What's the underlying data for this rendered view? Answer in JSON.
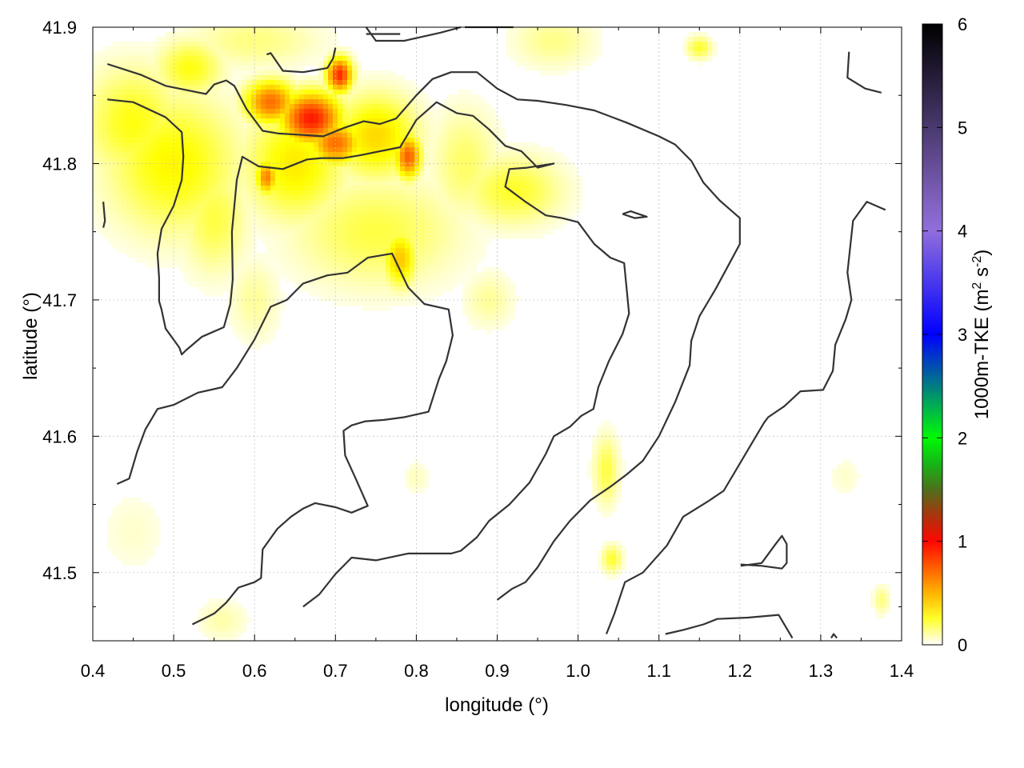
{
  "chart_data": {
    "type": "heatmap",
    "title": "",
    "xlabel": "longitude (°)",
    "ylabel": "latitude (°)",
    "colorbar_label": "1000m-TKE (m",
    "colorbar_label_sup1": "2",
    "colorbar_label_mid": " s",
    "colorbar_label_sup2": "-2",
    "colorbar_label_end": ")",
    "xlim": [
      0.4,
      1.4
    ],
    "ylim": [
      41.45,
      41.9
    ],
    "clim": [
      0,
      6
    ],
    "x_ticks": [
      "0.4",
      "0.5",
      "0.6",
      "0.7",
      "0.8",
      "0.9",
      "1.0",
      "1.1",
      "1.2",
      "1.3",
      "1.4"
    ],
    "y_ticks": [
      "41.5",
      "41.6",
      "41.7",
      "41.8",
      "41.9"
    ],
    "colorbar_ticks": [
      "0",
      "1",
      "2",
      "3",
      "4",
      "5",
      "6"
    ],
    "grid": true,
    "colormap": [
      "#ffffff",
      "#ffff00",
      "#ffa500",
      "#ff0000",
      "#228b22",
      "#00ff00",
      "#0000ff",
      "#9370db",
      "#000000"
    ],
    "contour_color": "#333333",
    "heat_blobs": [
      {
        "lon": 0.5,
        "lat": 41.8,
        "rx": 0.08,
        "ry": 0.05,
        "v": 0.32
      },
      {
        "lon": 0.45,
        "lat": 41.83,
        "rx": 0.06,
        "ry": 0.04,
        "v": 0.28
      },
      {
        "lon": 0.52,
        "lat": 41.87,
        "rx": 0.04,
        "ry": 0.02,
        "v": 0.28
      },
      {
        "lon": 0.55,
        "lat": 41.76,
        "rx": 0.04,
        "ry": 0.04,
        "v": 0.22
      },
      {
        "lon": 0.67,
        "lat": 41.833,
        "rx": 0.035,
        "ry": 0.018,
        "v": 0.95
      },
      {
        "lon": 0.62,
        "lat": 41.845,
        "rx": 0.03,
        "ry": 0.015,
        "v": 0.7
      },
      {
        "lon": 0.705,
        "lat": 41.865,
        "rx": 0.015,
        "ry": 0.012,
        "v": 0.9
      },
      {
        "lon": 0.7,
        "lat": 41.815,
        "rx": 0.03,
        "ry": 0.015,
        "v": 0.7
      },
      {
        "lon": 0.79,
        "lat": 41.805,
        "rx": 0.015,
        "ry": 0.015,
        "v": 0.75
      },
      {
        "lon": 0.615,
        "lat": 41.79,
        "rx": 0.012,
        "ry": 0.012,
        "v": 0.65
      },
      {
        "lon": 0.65,
        "lat": 41.8,
        "rx": 0.06,
        "ry": 0.04,
        "v": 0.35
      },
      {
        "lon": 0.75,
        "lat": 41.82,
        "rx": 0.05,
        "ry": 0.03,
        "v": 0.4
      },
      {
        "lon": 0.75,
        "lat": 41.75,
        "rx": 0.1,
        "ry": 0.04,
        "v": 0.22
      },
      {
        "lon": 0.78,
        "lat": 41.73,
        "rx": 0.02,
        "ry": 0.02,
        "v": 0.45
      },
      {
        "lon": 0.92,
        "lat": 41.78,
        "rx": 0.06,
        "ry": 0.025,
        "v": 0.25
      },
      {
        "lon": 0.86,
        "lat": 41.8,
        "rx": 0.04,
        "ry": 0.04,
        "v": 0.18
      },
      {
        "lon": 0.6,
        "lat": 41.89,
        "rx": 0.08,
        "ry": 0.02,
        "v": 0.15
      },
      {
        "lon": 0.97,
        "lat": 41.89,
        "rx": 0.05,
        "ry": 0.02,
        "v": 0.14
      },
      {
        "lon": 1.15,
        "lat": 41.885,
        "rx": 0.015,
        "ry": 0.008,
        "v": 0.25
      },
      {
        "lon": 1.035,
        "lat": 41.575,
        "rx": 0.015,
        "ry": 0.025,
        "v": 0.22
      },
      {
        "lon": 1.042,
        "lat": 41.51,
        "rx": 0.012,
        "ry": 0.01,
        "v": 0.25
      },
      {
        "lon": 1.375,
        "lat": 41.48,
        "rx": 0.01,
        "ry": 0.01,
        "v": 0.15
      },
      {
        "lon": 0.56,
        "lat": 41.465,
        "rx": 0.03,
        "ry": 0.015,
        "v": 0.1
      },
      {
        "lon": 0.45,
        "lat": 41.53,
        "rx": 0.04,
        "ry": 0.03,
        "v": 0.06
      },
      {
        "lon": 0.6,
        "lat": 41.7,
        "rx": 0.03,
        "ry": 0.03,
        "v": 0.12
      },
      {
        "lon": 0.89,
        "lat": 41.7,
        "rx": 0.03,
        "ry": 0.02,
        "v": 0.12
      },
      {
        "lon": 0.8,
        "lat": 41.57,
        "rx": 0.015,
        "ry": 0.012,
        "v": 0.08
      },
      {
        "lon": 1.33,
        "lat": 41.57,
        "rx": 0.02,
        "ry": 0.015,
        "v": 0.06
      }
    ],
    "contours": [
      [
        [
          0.418,
          41.873
        ],
        [
          0.46,
          41.865
        ],
        [
          0.49,
          41.857
        ],
        [
          0.54,
          41.851
        ],
        [
          0.55,
          41.858
        ],
        [
          0.565,
          41.861
        ],
        [
          0.575,
          41.857
        ],
        [
          0.59,
          41.84
        ],
        [
          0.61,
          41.824
        ],
        [
          0.63,
          41.822
        ],
        [
          0.66,
          41.821
        ],
        [
          0.685,
          41.82
        ],
        [
          0.71,
          41.826
        ],
        [
          0.735,
          41.831
        ],
        [
          0.755,
          41.829
        ],
        [
          0.775,
          41.833
        ],
        [
          0.8,
          41.85
        ],
        [
          0.82,
          41.862
        ],
        [
          0.843,
          41.867
        ],
        [
          0.875,
          41.867
        ],
        [
          0.9,
          41.855
        ],
        [
          0.925,
          41.847
        ],
        [
          0.95,
          41.846
        ],
        [
          0.985,
          41.843
        ],
        [
          1.02,
          41.839
        ],
        [
          1.06,
          41.83
        ],
        [
          1.1,
          41.82
        ],
        [
          1.12,
          41.814
        ],
        [
          1.14,
          41.802
        ],
        [
          1.155,
          41.786
        ],
        [
          1.175,
          41.773
        ],
        [
          1.2,
          41.76
        ],
        [
          1.2,
          41.741
        ],
        [
          1.19,
          41.73
        ],
        [
          1.17,
          41.708
        ],
        [
          1.15,
          41.688
        ],
        [
          1.14,
          41.67
        ],
        [
          1.138,
          41.652
        ],
        [
          1.12,
          41.625
        ],
        [
          1.1,
          41.6
        ],
        [
          1.08,
          41.582
        ],
        [
          1.06,
          41.572
        ],
        [
          1.04,
          41.563
        ],
        [
          1.015,
          41.553
        ],
        [
          0.99,
          41.538
        ],
        [
          0.97,
          41.523
        ],
        [
          0.95,
          41.504
        ],
        [
          0.935,
          41.493
        ],
        [
          0.918,
          41.488
        ],
        [
          0.9,
          41.48
        ]
      ],
      [
        [
          0.418,
          41.847
        ],
        [
          0.45,
          41.845
        ],
        [
          0.49,
          41.834
        ],
        [
          0.51,
          41.823
        ],
        [
          0.512,
          41.805
        ],
        [
          0.51,
          41.788
        ],
        [
          0.5,
          41.769
        ],
        [
          0.485,
          41.752
        ],
        [
          0.48,
          41.734
        ],
        [
          0.482,
          41.716
        ],
        [
          0.482,
          41.699
        ],
        [
          0.485,
          41.693
        ],
        [
          0.49,
          41.679
        ],
        [
          0.507,
          41.665
        ],
        [
          0.51,
          41.66
        ],
        [
          0.515,
          41.663
        ],
        [
          0.535,
          41.673
        ],
        [
          0.562,
          41.68
        ],
        [
          0.57,
          41.697
        ],
        [
          0.573,
          41.715
        ],
        [
          0.572,
          41.75
        ],
        [
          0.578,
          41.788
        ],
        [
          0.585,
          41.805
        ],
        [
          0.605,
          41.798
        ],
        [
          0.635,
          41.796
        ],
        [
          0.665,
          41.803
        ],
        [
          0.683,
          41.804
        ],
        [
          0.71,
          41.804
        ],
        [
          0.73,
          41.806
        ],
        [
          0.755,
          41.809
        ],
        [
          0.78,
          41.812
        ],
        [
          0.8,
          41.832
        ],
        [
          0.825,
          41.845
        ],
        [
          0.85,
          41.837
        ],
        [
          0.87,
          41.835
        ],
        [
          0.89,
          41.825
        ],
        [
          0.91,
          41.813
        ],
        [
          0.93,
          41.809
        ],
        [
          0.95,
          41.797
        ],
        [
          0.97,
          41.8
        ],
        [
          0.937,
          41.797
        ],
        [
          0.915,
          41.796
        ],
        [
          0.91,
          41.783
        ],
        [
          0.935,
          41.772
        ],
        [
          0.96,
          41.762
        ],
        [
          0.98,
          41.76
        ],
        [
          1.0,
          41.757
        ],
        [
          1.02,
          41.741
        ],
        [
          1.04,
          41.731
        ],
        [
          1.057,
          41.727
        ],
        [
          1.063,
          41.69
        ],
        [
          1.055,
          41.675
        ],
        [
          1.038,
          41.655
        ],
        [
          1.025,
          41.636
        ],
        [
          1.019,
          41.62
        ],
        [
          1.004,
          41.615
        ],
        [
          0.99,
          41.607
        ],
        [
          0.97,
          41.6
        ],
        [
          0.96,
          41.587
        ],
        [
          0.94,
          41.566
        ],
        [
          0.915,
          41.55
        ],
        [
          0.89,
          41.538
        ],
        [
          0.875,
          41.526
        ],
        [
          0.855,
          41.516
        ],
        [
          0.843,
          41.514
        ],
        [
          0.79,
          41.514
        ],
        [
          0.75,
          41.509
        ],
        [
          0.72,
          41.511
        ],
        [
          0.7,
          41.499
        ],
        [
          0.68,
          41.484
        ],
        [
          0.66,
          41.475
        ]
      ],
      [
        [
          0.738,
          41.9
        ],
        [
          0.75,
          41.89
        ],
        [
          0.785,
          41.89
        ],
        [
          0.83,
          41.896
        ],
        [
          0.855,
          41.9
        ]
      ],
      [
        [
          0.86,
          41.9
        ],
        [
          0.92,
          41.9
        ]
      ],
      [
        [
          0.413,
          41.772
        ],
        [
          0.415,
          41.758
        ],
        [
          0.413,
          41.753
        ]
      ],
      [
        [
          0.738,
          41.895
        ],
        [
          0.78,
          41.895
        ]
      ],
      [
        [
          1.335,
          41.882
        ],
        [
          1.333,
          41.863
        ],
        [
          1.355,
          41.855
        ],
        [
          1.375,
          41.852
        ]
      ],
      [
        [
          1.38,
          41.766
        ],
        [
          1.357,
          41.772
        ],
        [
          1.34,
          41.758
        ],
        [
          1.333,
          41.72
        ],
        [
          1.338,
          41.7
        ],
        [
          1.331,
          41.686
        ],
        [
          1.318,
          41.667
        ],
        [
          1.315,
          41.648
        ],
        [
          1.303,
          41.634
        ],
        [
          1.275,
          41.633
        ],
        [
          1.255,
          41.622
        ],
        [
          1.235,
          41.614
        ],
        [
          1.23,
          41.61
        ],
        [
          1.22,
          41.6
        ],
        [
          1.2,
          41.58
        ],
        [
          1.18,
          41.56
        ],
        [
          1.16,
          41.552
        ],
        [
          1.13,
          41.541
        ],
        [
          1.11,
          41.52
        ],
        [
          1.08,
          41.5
        ],
        [
          1.058,
          41.493
        ],
        [
          1.045,
          41.47
        ],
        [
          1.035,
          41.455
        ]
      ],
      [
        [
          0.43,
          41.565
        ],
        [
          0.445,
          41.569
        ],
        [
          0.455,
          41.589
        ],
        [
          0.465,
          41.605
        ],
        [
          0.48,
          41.62
        ],
        [
          0.5,
          41.623
        ],
        [
          0.53,
          41.632
        ],
        [
          0.56,
          41.636
        ],
        [
          0.578,
          41.65
        ],
        [
          0.6,
          41.671
        ],
        [
          0.62,
          41.695
        ],
        [
          0.64,
          41.7
        ],
        [
          0.66,
          41.712
        ],
        [
          0.69,
          41.718
        ],
        [
          0.715,
          41.72
        ],
        [
          0.74,
          41.731
        ],
        [
          0.77,
          41.734
        ],
        [
          0.79,
          41.709
        ],
        [
          0.81,
          41.697
        ],
        [
          0.84,
          41.693
        ],
        [
          0.845,
          41.674
        ],
        [
          0.837,
          41.655
        ],
        [
          0.828,
          41.642
        ],
        [
          0.815,
          41.618
        ],
        [
          0.785,
          41.614
        ],
        [
          0.76,
          41.612
        ],
        [
          0.737,
          41.611
        ],
        [
          0.72,
          41.608
        ],
        [
          0.71,
          41.604
        ],
        [
          0.712,
          41.586
        ],
        [
          0.725,
          41.569
        ],
        [
          0.74,
          41.549
        ],
        [
          0.72,
          41.544
        ],
        [
          0.7,
          41.548
        ],
        [
          0.675,
          41.551
        ],
        [
          0.66,
          41.547
        ],
        [
          0.645,
          41.541
        ],
        [
          0.628,
          41.532
        ],
        [
          0.61,
          41.517
        ],
        [
          0.608,
          41.496
        ],
        [
          0.6,
          41.493
        ],
        [
          0.58,
          41.489
        ],
        [
          0.565,
          41.478
        ],
        [
          0.55,
          41.47
        ],
        [
          0.523,
          41.462
        ]
      ],
      [
        [
          0.615,
          41.88
        ],
        [
          0.62,
          41.881
        ],
        [
          0.635,
          41.868
        ],
        [
          0.66,
          41.867
        ],
        [
          0.69,
          41.87
        ],
        [
          0.697,
          41.877
        ],
        [
          0.7,
          41.885
        ]
      ],
      [
        [
          1.055,
          41.763
        ],
        [
          1.065,
          41.765
        ],
        [
          1.085,
          41.761
        ],
        [
          1.07,
          41.76
        ],
        [
          1.055,
          41.763
        ]
      ],
      [
        [
          1.201,
          41.505
        ],
        [
          1.227,
          41.507
        ],
        [
          1.243,
          41.52
        ],
        [
          1.252,
          41.527
        ],
        [
          1.258,
          41.521
        ],
        [
          1.258,
          41.507
        ],
        [
          1.252,
          41.503
        ],
        [
          1.227,
          41.505
        ],
        [
          1.201,
          41.506
        ]
      ],
      [
        [
          1.108,
          41.455
        ],
        [
          1.13,
          41.458
        ],
        [
          1.155,
          41.462
        ],
        [
          1.172,
          41.466
        ],
        [
          1.21,
          41.467
        ],
        [
          1.248,
          41.469
        ],
        [
          1.265,
          41.452
        ]
      ],
      [
        [
          1.313,
          41.452
        ],
        [
          1.316,
          41.455
        ],
        [
          1.32,
          41.452
        ]
      ]
    ]
  }
}
